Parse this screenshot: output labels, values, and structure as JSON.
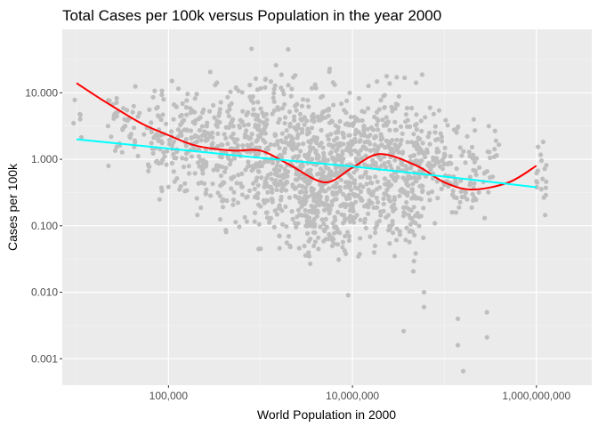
{
  "chart_data": {
    "type": "scatter",
    "title": "Total Cases per 100k versus Population in the year 2000",
    "xlabel": "World Population in 2000",
    "ylabel": "Cases per 100k",
    "x_scale": "log10",
    "y_scale": "log10",
    "xlim": [
      7000,
      4000000000
    ],
    "ylim": [
      0.0004,
      90
    ],
    "x_ticks": [
      {
        "value": 100000,
        "label": "100,000"
      },
      {
        "value": 10000000,
        "label": "10,000,000"
      },
      {
        "value": 1000000000,
        "label": "1,000,000,000"
      }
    ],
    "y_ticks": [
      {
        "value": 0.001,
        "label": "0.001"
      },
      {
        "value": 0.01,
        "label": "0.010"
      },
      {
        "value": 0.1,
        "label": "0.100"
      },
      {
        "value": 1,
        "label": "1.000"
      },
      {
        "value": 10,
        "label": "10.000"
      }
    ],
    "grid": true,
    "point_color": "#bebebe",
    "panel_color": "#ebebeb",
    "series": [
      {
        "type": "line",
        "color": "#ff0000",
        "x": [
          10000,
          20000,
          50000,
          100000,
          200000,
          500000,
          1000000,
          2000000,
          5000000,
          10000000,
          20000000,
          50000000,
          100000000,
          200000000,
          500000000,
          1000000000
        ],
        "y": [
          14,
          7.5,
          3.5,
          2.3,
          1.6,
          1.35,
          1.35,
          0.85,
          0.45,
          0.75,
          1.2,
          0.8,
          0.45,
          0.35,
          0.45,
          0.8
        ]
      },
      {
        "type": "line",
        "color": "#00ffff",
        "x": [
          10000,
          100000,
          1000000,
          10000000,
          100000000,
          1000000000
        ],
        "y": [
          2,
          1.45,
          1.05,
          0.78,
          0.55,
          0.38
        ]
      }
    ],
    "point_clusters": [
      {
        "x": [
          9000,
          12000
        ],
        "y": [
          0.9,
          12
        ],
        "n": 6
      },
      {
        "x": [
          20000,
          60000
        ],
        "y": [
          0.5,
          20
        ],
        "n": 45
      },
      {
        "x": [
          60000,
          200000
        ],
        "y": [
          0.15,
          25
        ],
        "n": 130
      },
      {
        "x": [
          200000,
          800000
        ],
        "y": [
          0.05,
          45
        ],
        "n": 200
      },
      {
        "x": [
          800000,
          3000000
        ],
        "y": [
          0.015,
          45
        ],
        "n": 320
      },
      {
        "x": [
          3000000,
          10000000
        ],
        "y": [
          0.008,
          40
        ],
        "n": 400
      },
      {
        "x": [
          10000000,
          60000000
        ],
        "y": [
          0.012,
          40
        ],
        "n": 420
      },
      {
        "x": [
          60000000,
          150000000
        ],
        "y": [
          0.05,
          12
        ],
        "n": 90
      },
      {
        "x": [
          150000000,
          400000000
        ],
        "y": [
          0.1,
          7
        ],
        "n": 55
      },
      {
        "x": [
          1000000000,
          1300000000
        ],
        "y": [
          0.09,
          3
        ],
        "n": 18
      }
    ],
    "outlier_points": [
      {
        "x": 140000000,
        "y": 0.004
      },
      {
        "x": 140000000,
        "y": 0.0016
      },
      {
        "x": 160000000,
        "y": 0.00065
      },
      {
        "x": 290000000,
        "y": 0.005
      },
      {
        "x": 290000000,
        "y": 0.0021
      },
      {
        "x": 36000000,
        "y": 0.0026
      },
      {
        "x": 60000000,
        "y": 0.01
      },
      {
        "x": 60000000,
        "y": 0.006
      },
      {
        "x": 9000000,
        "y": 0.009
      },
      {
        "x": 800000,
        "y": 46
      },
      {
        "x": 2000000,
        "y": 45
      }
    ]
  }
}
